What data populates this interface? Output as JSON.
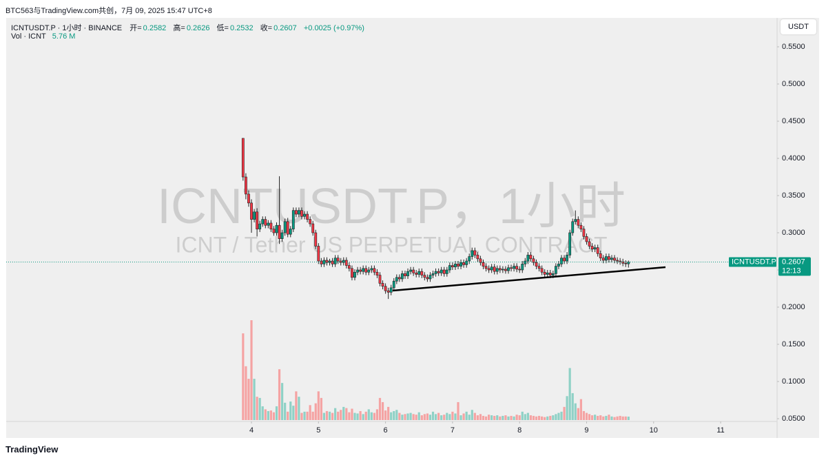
{
  "banner": "BTC563与TradingView.com共创，7月 09, 2025 15:47 UTC+8",
  "footer_logo": "TradingView",
  "chart_data": {
    "type": "candlestick",
    "title": "ICNTUSDT.P · 1小时 · BINANCE",
    "ohlc_labels": [
      "开=",
      "高=",
      "低=",
      "收="
    ],
    "change_label": "+0.0025 (+0.97%)",
    "volume_title": "Vol · ICNT",
    "volume_last_label": "5.76 M",
    "currency": "USDT",
    "watermark": "ICNTUSDT.P，1小时",
    "watermark_subtitle": "ICNT / Tether US PERPETUAL CONTRACT",
    "price_tag": "ICNTUSDT.P",
    "countdown": "12:13",
    "up_color": "#089981",
    "down_color": "#f23645",
    "volume_up_color": "#8fd1c6",
    "volume_down_color": "#f5a3a3",
    "grid": false,
    "xlim": [
      0.341,
      11.842
    ],
    "xticks": [
      4,
      5,
      6,
      7,
      8,
      9,
      10,
      11
    ],
    "ylim": [
      0.0463,
      0.5889
    ],
    "yticks": [
      {
        "value": 0.05,
        "label": "0.0500"
      },
      {
        "value": 0.1,
        "label": "0.1000"
      },
      {
        "value": 0.15,
        "label": "0.1500"
      },
      {
        "value": 0.2,
        "label": "0.2000"
      },
      {
        "value": 0.25,
        "label": "0.2500"
      },
      {
        "value": 0.3,
        "label": "0.3000"
      },
      {
        "value": 0.35,
        "label": "0.3500"
      },
      {
        "value": 0.4,
        "label": "0.4000"
      },
      {
        "value": 0.45,
        "label": "0.4500"
      },
      {
        "value": 0.5,
        "label": "0.5000"
      },
      {
        "value": 0.55,
        "label": "0.5500"
      }
    ],
    "trendline": {
      "x": [
        6.107,
        10.177
      ],
      "y": [
        0.2222,
        0.2537
      ],
      "color": "#000000"
    },
    "x": [
      3.875,
      3.9167,
      3.9583,
      4,
      4.0417,
      4.0833,
      4.125,
      4.1667,
      4.2083,
      4.25,
      4.2917,
      4.3333,
      4.375,
      4.4167,
      4.4583,
      4.5,
      4.5417,
      4.5833,
      4.625,
      4.6667,
      4.7083,
      4.75,
      4.7917,
      4.8333,
      4.875,
      4.9167,
      4.9583,
      5,
      5.0417,
      5.0833,
      5.125,
      5.1667,
      5.2083,
      5.25,
      5.2917,
      5.3333,
      5.375,
      5.4167,
      5.4583,
      5.5,
      5.5417,
      5.5833,
      5.625,
      5.6667,
      5.7083,
      5.75,
      5.7917,
      5.8333,
      5.875,
      5.9167,
      5.9583,
      6,
      6.0417,
      6.0833,
      6.125,
      6.1667,
      6.2083,
      6.25,
      6.2917,
      6.3333,
      6.375,
      6.4167,
      6.4583,
      6.5,
      6.5417,
      6.5833,
      6.625,
      6.6667,
      6.7083,
      6.75,
      6.7917,
      6.8333,
      6.875,
      6.9167,
      6.9583,
      7,
      7.0417,
      7.0833,
      7.125,
      7.1667,
      7.2083,
      7.25,
      7.2917,
      7.3333,
      7.375,
      7.4167,
      7.4583,
      7.5,
      7.5417,
      7.5833,
      7.625,
      7.6667,
      7.7083,
      7.75,
      7.7917,
      7.8333,
      7.875,
      7.9167,
      7.9583,
      8,
      8.0417,
      8.0833,
      8.125,
      8.1667,
      8.2083,
      8.25,
      8.2917,
      8.3333,
      8.375,
      8.4167,
      8.4583,
      8.5,
      8.5417,
      8.5833,
      8.625,
      8.6667,
      8.7083,
      8.75,
      8.7917,
      8.8333,
      8.875,
      8.9167,
      8.9583,
      9,
      9.0417,
      9.0833,
      9.125,
      9.1667,
      9.2083,
      9.25,
      9.2917,
      9.3333,
      9.375,
      9.4167,
      9.4583,
      9.5,
      9.5417,
      9.5833,
      9.625
    ],
    "open": [
      0.427,
      0.375,
      0.352,
      0.34,
      0.318,
      0.328,
      0.305,
      0.312,
      0.318,
      0.31,
      0.313,
      0.305,
      0.3,
      0.31,
      0.292,
      0.3,
      0.315,
      0.298,
      0.305,
      0.33,
      0.325,
      0.33,
      0.322,
      0.325,
      0.318,
      0.312,
      0.3,
      0.282,
      0.262,
      0.258,
      0.263,
      0.26,
      0.262,
      0.258,
      0.266,
      0.262,
      0.26,
      0.263,
      0.256,
      0.252,
      0.24,
      0.247,
      0.25,
      0.248,
      0.252,
      0.247,
      0.25,
      0.252,
      0.247,
      0.243,
      0.232,
      0.228,
      0.222,
      0.22,
      0.226,
      0.235,
      0.24,
      0.238,
      0.245,
      0.242,
      0.248,
      0.25,
      0.246,
      0.244,
      0.248,
      0.243,
      0.24,
      0.238,
      0.243,
      0.245,
      0.248,
      0.246,
      0.25,
      0.245,
      0.25,
      0.256,
      0.254,
      0.258,
      0.255,
      0.26,
      0.257,
      0.262,
      0.268,
      0.276,
      0.27,
      0.265,
      0.26,
      0.255,
      0.252,
      0.25,
      0.254,
      0.248,
      0.252,
      0.25,
      0.251,
      0.249,
      0.253,
      0.252,
      0.255,
      0.251,
      0.25,
      0.258,
      0.262,
      0.27,
      0.265,
      0.26,
      0.255,
      0.252,
      0.247,
      0.244,
      0.246,
      0.243,
      0.245,
      0.255,
      0.258,
      0.266,
      0.262,
      0.27,
      0.3,
      0.315,
      0.318,
      0.31,
      0.305,
      0.295,
      0.288,
      0.282,
      0.278,
      0.28,
      0.272,
      0.266,
      0.263,
      0.268,
      0.264,
      0.266,
      0.263,
      0.262,
      0.261,
      0.259,
      0.2582
    ],
    "high": [
      0.427,
      0.38,
      0.357,
      0.345,
      0.332,
      0.333,
      0.316,
      0.322,
      0.322,
      0.317,
      0.317,
      0.309,
      0.314,
      0.376,
      0.304,
      0.319,
      0.32,
      0.309,
      0.334,
      0.334,
      0.334,
      0.334,
      0.329,
      0.329,
      0.322,
      0.316,
      0.304,
      0.286,
      0.266,
      0.267,
      0.267,
      0.265,
      0.266,
      0.27,
      0.27,
      0.266,
      0.267,
      0.267,
      0.26,
      0.256,
      0.251,
      0.254,
      0.254,
      0.256,
      0.256,
      0.254,
      0.256,
      0.256,
      0.251,
      0.247,
      0.236,
      0.232,
      0.226,
      0.23,
      0.239,
      0.244,
      0.244,
      0.249,
      0.249,
      0.252,
      0.254,
      0.254,
      0.25,
      0.252,
      0.252,
      0.247,
      0.244,
      0.247,
      0.249,
      0.252,
      0.252,
      0.254,
      0.254,
      0.254,
      0.26,
      0.26,
      0.262,
      0.262,
      0.264,
      0.264,
      0.266,
      0.272,
      0.28,
      0.28,
      0.274,
      0.269,
      0.264,
      0.259,
      0.256,
      0.258,
      0.258,
      0.256,
      0.256,
      0.255,
      0.255,
      0.257,
      0.257,
      0.259,
      0.259,
      0.255,
      0.262,
      0.266,
      0.274,
      0.274,
      0.269,
      0.264,
      0.259,
      0.256,
      0.251,
      0.25,
      0.25,
      0.249,
      0.259,
      0.262,
      0.27,
      0.27,
      0.274,
      0.304,
      0.319,
      0.33,
      0.322,
      0.314,
      0.309,
      0.299,
      0.292,
      0.286,
      0.284,
      0.284,
      0.276,
      0.27,
      0.272,
      0.272,
      0.27,
      0.27,
      0.267,
      0.266,
      0.265,
      0.263,
      0.2626
    ],
    "low": [
      0.37,
      0.345,
      0.335,
      0.3,
      0.314,
      0.295,
      0.301,
      0.308,
      0.306,
      0.306,
      0.301,
      0.296,
      0.296,
      0.285,
      0.288,
      0.296,
      0.294,
      0.294,
      0.301,
      0.321,
      0.321,
      0.318,
      0.318,
      0.314,
      0.308,
      0.296,
      0.278,
      0.258,
      0.254,
      0.254,
      0.256,
      0.256,
      0.254,
      0.254,
      0.258,
      0.256,
      0.256,
      0.252,
      0.248,
      0.236,
      0.236,
      0.243,
      0.244,
      0.244,
      0.243,
      0.243,
      0.246,
      0.243,
      0.239,
      0.228,
      0.224,
      0.218,
      0.211,
      0.216,
      0.222,
      0.231,
      0.234,
      0.234,
      0.238,
      0.238,
      0.244,
      0.242,
      0.24,
      0.24,
      0.239,
      0.236,
      0.234,
      0.234,
      0.239,
      0.241,
      0.242,
      0.242,
      0.241,
      0.241,
      0.246,
      0.25,
      0.25,
      0.251,
      0.251,
      0.253,
      0.253,
      0.258,
      0.264,
      0.266,
      0.261,
      0.256,
      0.251,
      0.248,
      0.246,
      0.246,
      0.244,
      0.244,
      0.246,
      0.246,
      0.245,
      0.245,
      0.248,
      0.248,
      0.247,
      0.246,
      0.246,
      0.254,
      0.258,
      0.261,
      0.256,
      0.251,
      0.248,
      0.243,
      0.24,
      0.24,
      0.239,
      0.239,
      0.241,
      0.251,
      0.254,
      0.258,
      0.258,
      0.266,
      0.296,
      0.311,
      0.306,
      0.301,
      0.291,
      0.284,
      0.278,
      0.274,
      0.274,
      0.268,
      0.262,
      0.259,
      0.259,
      0.26,
      0.26,
      0.259,
      0.258,
      0.257,
      0.255,
      0.254,
      0.2532
    ],
    "close": [
      0.375,
      0.352,
      0.34,
      0.318,
      0.328,
      0.305,
      0.312,
      0.318,
      0.31,
      0.313,
      0.305,
      0.3,
      0.31,
      0.292,
      0.3,
      0.315,
      0.298,
      0.305,
      0.33,
      0.325,
      0.33,
      0.322,
      0.325,
      0.318,
      0.312,
      0.3,
      0.282,
      0.262,
      0.258,
      0.263,
      0.26,
      0.262,
      0.258,
      0.266,
      0.262,
      0.26,
      0.263,
      0.256,
      0.252,
      0.24,
      0.247,
      0.25,
      0.248,
      0.252,
      0.247,
      0.25,
      0.252,
      0.247,
      0.243,
      0.232,
      0.228,
      0.222,
      0.22,
      0.226,
      0.235,
      0.24,
      0.238,
      0.245,
      0.242,
      0.248,
      0.25,
      0.246,
      0.244,
      0.248,
      0.243,
      0.24,
      0.238,
      0.243,
      0.245,
      0.248,
      0.246,
      0.25,
      0.245,
      0.25,
      0.256,
      0.254,
      0.258,
      0.255,
      0.26,
      0.257,
      0.262,
      0.268,
      0.276,
      0.27,
      0.265,
      0.26,
      0.255,
      0.252,
      0.25,
      0.254,
      0.248,
      0.252,
      0.25,
      0.251,
      0.249,
      0.253,
      0.252,
      0.255,
      0.251,
      0.25,
      0.258,
      0.262,
      0.27,
      0.265,
      0.26,
      0.255,
      0.252,
      0.247,
      0.244,
      0.246,
      0.243,
      0.245,
      0.255,
      0.258,
      0.266,
      0.262,
      0.27,
      0.3,
      0.315,
      0.318,
      0.31,
      0.305,
      0.295,
      0.288,
      0.282,
      0.278,
      0.28,
      0.272,
      0.266,
      0.263,
      0.268,
      0.264,
      0.266,
      0.263,
      0.262,
      0.261,
      0.259,
      0.2582,
      0.2607
    ],
    "volume": [
      145,
      90,
      69,
      167,
      69,
      39,
      37,
      23,
      18,
      15,
      16,
      13,
      23,
      85,
      62,
      29,
      14,
      31,
      24,
      48,
      39,
      12,
      14,
      14,
      25,
      14,
      28,
      48,
      37,
      12,
      15,
      14,
      12,
      20,
      14,
      17,
      22,
      20,
      13,
      19,
      12,
      11,
      15,
      10,
      14,
      18,
      13,
      12,
      18,
      37,
      30,
      16,
      22,
      13,
      15,
      17,
      12,
      9,
      10,
      11,
      12,
      10,
      9,
      13,
      8,
      10,
      11,
      9,
      14,
      10,
      12,
      8,
      9,
      12,
      10,
      14,
      11,
      30,
      8,
      11,
      14,
      9,
      17,
      12,
      8,
      10,
      7,
      6,
      9,
      8,
      7,
      8,
      6,
      7,
      8,
      6,
      7,
      6,
      9,
      8,
      14,
      10,
      12,
      8,
      7,
      6,
      7,
      6,
      5,
      6,
      7,
      8,
      10,
      12,
      14,
      22,
      40,
      87,
      45,
      28,
      20,
      35,
      15,
      12,
      10,
      8,
      9,
      7,
      8,
      6,
      7,
      9,
      6,
      5,
      6,
      7,
      6,
      6,
      5.76
    ]
  }
}
